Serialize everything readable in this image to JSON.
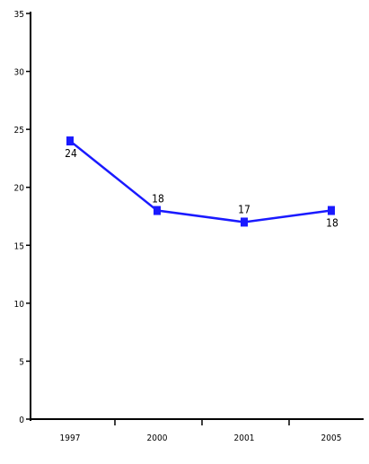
{
  "chart_data": {
    "type": "line",
    "title": "",
    "xlabel": "",
    "ylabel": "",
    "categories": [
      "1997",
      "2000",
      "2001",
      "2005"
    ],
    "series": [
      {
        "values": [
          24,
          18,
          17,
          18
        ],
        "data_labels": [
          "24",
          "18",
          "17",
          "18"
        ],
        "color": "#1a1aff"
      }
    ],
    "ylim": [
      0,
      35
    ],
    "yticks": [
      0,
      5,
      10,
      15,
      20,
      25,
      30,
      35
    ],
    "ytick_labels": [
      "0",
      "5",
      "10",
      "15",
      "20",
      "25",
      "30",
      "35"
    ],
    "grid": false,
    "legend": "none"
  }
}
